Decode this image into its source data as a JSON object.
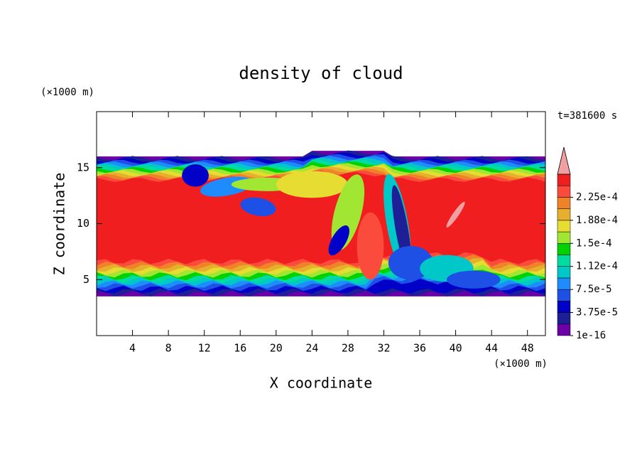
{
  "chart_data": {
    "type": "contour",
    "title": "density of cloud",
    "xlabel": "X coordinate",
    "ylabel": "Z coordinate",
    "xunit": "(×1000 m)",
    "yunit": "(×1000 m)",
    "annotation": "t=381600 s",
    "xlim": [
      0,
      50
    ],
    "xticks": [
      4,
      8,
      12,
      16,
      20,
      24,
      28,
      32,
      36,
      40,
      44,
      48
    ],
    "ylim": [
      0,
      20
    ],
    "yticks": [
      5,
      10,
      15
    ],
    "colorbar": {
      "clim": [
        1e-16,
        0.0002625
      ],
      "ticks": [
        {
          "value": 1e-16,
          "label": "1e-16"
        },
        {
          "value": 3.75e-05,
          "label": "3.75e-5"
        },
        {
          "value": 7.5e-05,
          "label": "7.5e-5"
        },
        {
          "value": 0.0001125,
          "label": "1.12e-4"
        },
        {
          "value": 0.00015,
          "label": "1.5e-4"
        },
        {
          "value": 0.0001875,
          "label": "1.88e-4"
        },
        {
          "value": 0.000225,
          "label": "2.25e-4"
        }
      ],
      "colors": [
        "#6c00a8",
        "#1e1e96",
        "#0000c8",
        "#1e50e6",
        "#1e8cff",
        "#00c8c8",
        "#00dca0",
        "#00d200",
        "#a0e632",
        "#e6dc32",
        "#e6af2d",
        "#f08228",
        "#fa4b3c",
        "#f01e1e"
      ],
      "extend_color": "#f0a0a0"
    }
  }
}
